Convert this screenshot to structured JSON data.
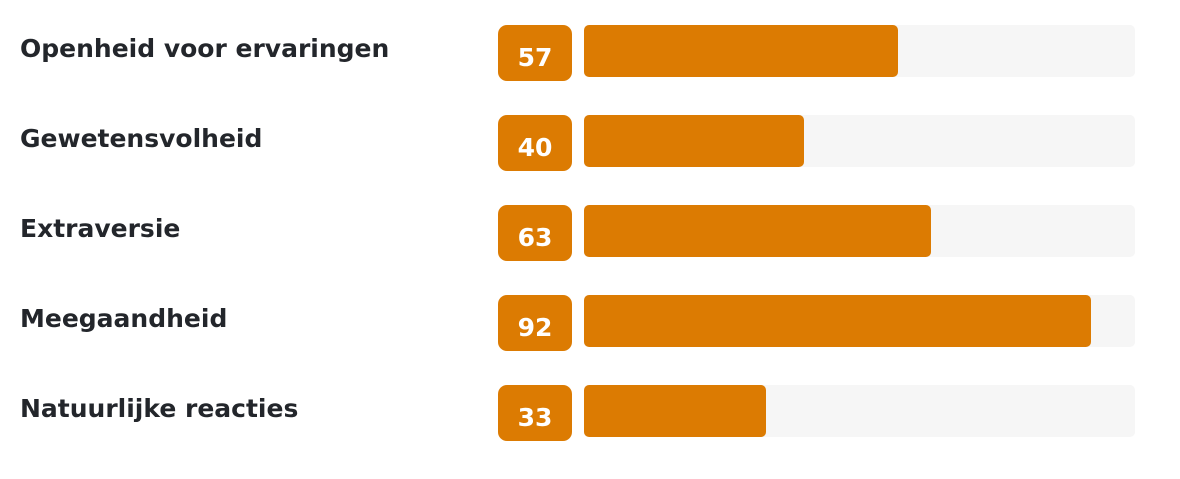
{
  "colors": {
    "bar": "#dc7b02",
    "track": "#f6f6f6",
    "label": "#23262b"
  },
  "chart_data": {
    "type": "bar",
    "orientation": "horizontal",
    "categories": [
      "Openheid voor ervaringen",
      "Gewetensvolheid",
      "Extraversie",
      "Meegaandheid",
      "Natuurlijke reacties"
    ],
    "values": [
      57,
      40,
      63,
      92,
      33
    ],
    "xlim": [
      0,
      100
    ],
    "grid": false,
    "legend": "none"
  }
}
